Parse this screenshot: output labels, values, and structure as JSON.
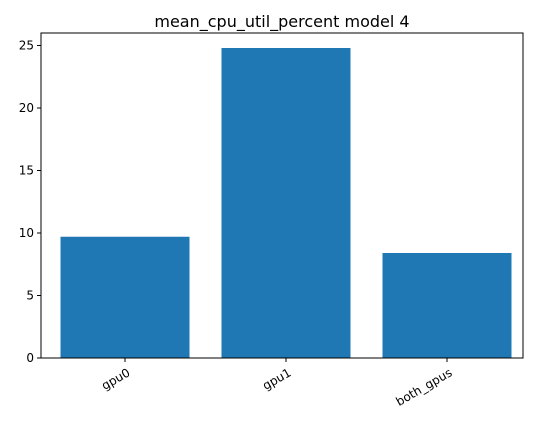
{
  "chart_data": {
    "type": "bar",
    "title": "mean_cpu_util_percent model 4",
    "categories": [
      "gpu0",
      "gpu1",
      "both_gpus"
    ],
    "values": [
      9.7,
      24.8,
      8.4
    ],
    "xlabel": "",
    "ylabel": "",
    "ylim": [
      0,
      26
    ],
    "yticks": [
      0,
      5,
      10,
      15,
      20,
      25
    ],
    "bar_color": "#1f77b4",
    "grid": false,
    "x_tick_rotation_deg": 30
  }
}
